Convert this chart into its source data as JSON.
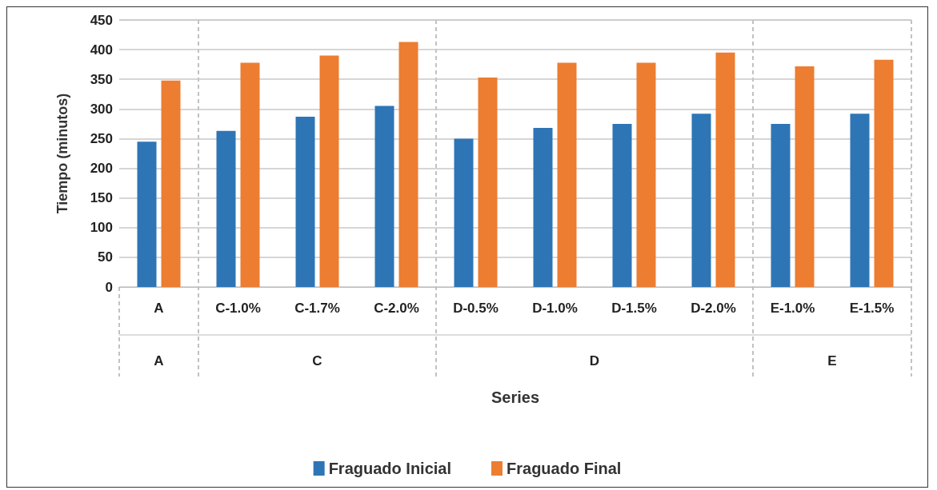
{
  "chart_data": {
    "type": "bar",
    "xlabel": "Series",
    "ylabel": "Tiempo (minutos)",
    "categories": [
      "A",
      "C-1.0%",
      "C-1.7%",
      "C-2.0%",
      "D-0.5%",
      "D-1.0%",
      "D-1.5%",
      "D-2.0%",
      "E-1.0%",
      "E-1.5%"
    ],
    "series": [
      {
        "name": "Fraguado Inicial",
        "color": "#2e75b6",
        "values": [
          245,
          263,
          287,
          305,
          250,
          268,
          275,
          292,
          275,
          292
        ]
      },
      {
        "name": "Fraguado Final",
        "color": "#ed7d31",
        "values": [
          348,
          378,
          390,
          413,
          353,
          378,
          378,
          395,
          372,
          383
        ]
      }
    ],
    "annotations": [
      "A",
      "C",
      "D",
      "E"
    ],
    "ylim": [
      0,
      450
    ],
    "yticks": [
      0,
      50,
      100,
      150,
      200,
      250,
      300,
      350,
      400,
      450
    ],
    "grid": "y",
    "legend": "bottom"
  }
}
